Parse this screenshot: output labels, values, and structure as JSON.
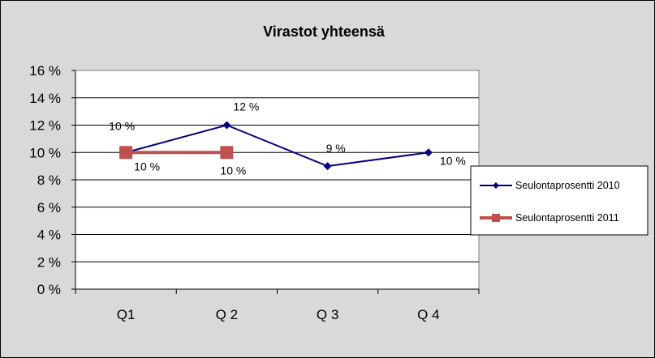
{
  "chart_data": {
    "type": "line",
    "title": "Virastot yhteensä",
    "categories": [
      "Q1",
      "Q 2",
      "Q 3",
      "Q 4"
    ],
    "ylim": [
      0,
      16
    ],
    "y_ticks": [
      0,
      2,
      4,
      6,
      8,
      10,
      12,
      14,
      16
    ],
    "y_tick_labels": [
      "0 %",
      "2 %",
      "4 %",
      "6 %",
      "8 %",
      "10 %",
      "12 %",
      "14 %",
      "16 %"
    ],
    "grid": true,
    "legend_position": "right",
    "series": [
      {
        "name": "Seulontaprosentti  2010",
        "color": "#000080",
        "marker": "diamond",
        "values": [
          10,
          12,
          9,
          10
        ],
        "labels": [
          "10 %",
          "12 %",
          "9 %",
          "10 %"
        ]
      },
      {
        "name": "Seulontaprosentti  2011",
        "color": "#c0504d",
        "marker": "square",
        "values": [
          10,
          10,
          null,
          null
        ],
        "labels": [
          "10 %",
          "10 %",
          null,
          null
        ]
      }
    ]
  }
}
